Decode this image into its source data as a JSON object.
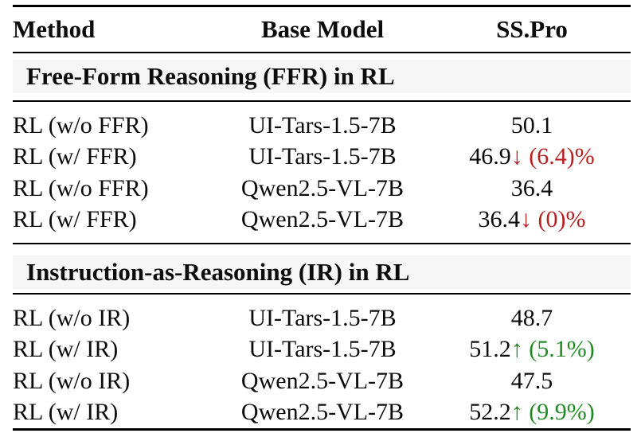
{
  "table": {
    "columns": [
      "Method",
      "Base Model",
      "SS.Pro"
    ],
    "sections": [
      {
        "title": "Free-Form Reasoning (FFR) in RL",
        "rows": [
          {
            "method": "RL (w/o FFR)",
            "base_model": "UI-Tars-1.5-7B",
            "score": "50.1",
            "delta": "",
            "delta_dir": "none"
          },
          {
            "method": "RL (w/ FFR)",
            "base_model": "UI-Tars-1.5-7B",
            "score": "46.9",
            "delta": "↓ (6.4)%",
            "delta_dir": "down"
          },
          {
            "method": "RL (w/o FFR)",
            "base_model": "Qwen2.5-VL-7B",
            "score": "36.4",
            "delta": "",
            "delta_dir": "none"
          },
          {
            "method": "RL (w/ FFR)",
            "base_model": "Qwen2.5-VL-7B",
            "score": "36.4",
            "delta": "↓ (0)%",
            "delta_dir": "down"
          }
        ]
      },
      {
        "title": "Instruction-as-Reasoning (IR) in RL",
        "rows": [
          {
            "method": "RL (w/o IR)",
            "base_model": "UI-Tars-1.5-7B",
            "score": "48.7",
            "delta": "",
            "delta_dir": "none"
          },
          {
            "method": "RL (w/ IR)",
            "base_model": "UI-Tars-1.5-7B",
            "score": "51.2",
            "delta": "↑ (5.1%)",
            "delta_dir": "up"
          },
          {
            "method": "RL (w/o IR)",
            "base_model": "Qwen2.5-VL-7B",
            "score": "47.5",
            "delta": "",
            "delta_dir": "none"
          },
          {
            "method": "RL (w/ IR)",
            "base_model": "Qwen2.5-VL-7B",
            "score": "52.2",
            "delta": "↑ (9.9%)",
            "delta_dir": "up"
          }
        ]
      }
    ],
    "colors": {
      "down": "#b91f1f",
      "up": "#1f8b24",
      "band_bg": "#f6f6f6",
      "rule": "#000000",
      "text": "#0c0c0c"
    }
  }
}
